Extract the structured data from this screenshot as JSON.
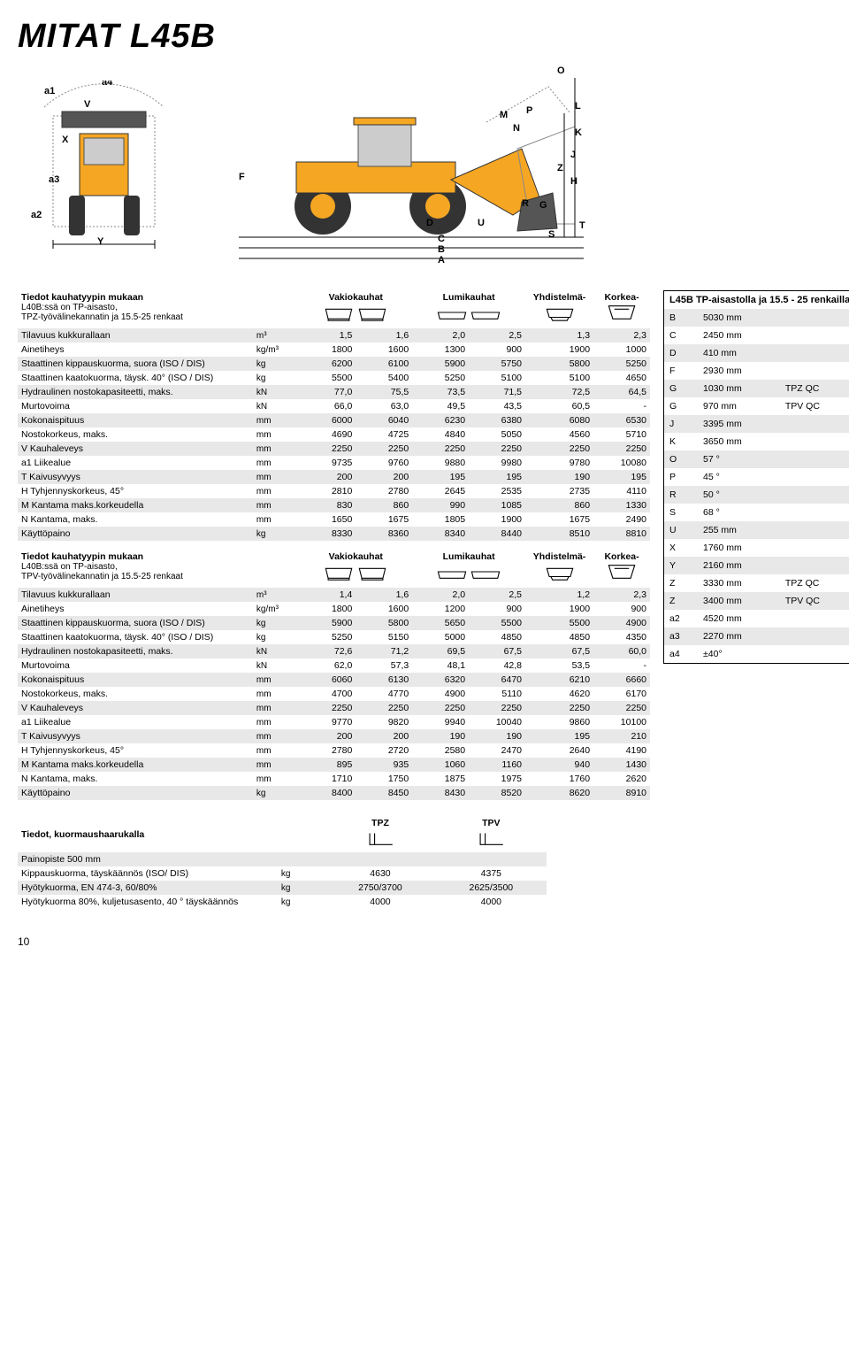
{
  "title": "MITAT L45B",
  "diagram_left": {
    "labels": [
      "a1",
      "a4",
      "V",
      "X",
      "a3",
      "a2",
      "Y"
    ],
    "positions": [
      [
        30,
        15
      ],
      [
        95,
        5
      ],
      [
        75,
        30
      ],
      [
        50,
        70
      ],
      [
        35,
        115
      ],
      [
        15,
        155
      ],
      [
        90,
        185
      ]
    ]
  },
  "diagram_right": {
    "labels": [
      "O",
      "M",
      "P",
      "L",
      "N",
      "K",
      "J",
      "Z",
      "H",
      "F",
      "D",
      "U",
      "R",
      "G",
      "T",
      "S",
      "C",
      "B",
      "A"
    ],
    "positions": [
      [
        380,
        10
      ],
      [
        315,
        60
      ],
      [
        345,
        55
      ],
      [
        400,
        50
      ],
      [
        330,
        75
      ],
      [
        400,
        80
      ],
      [
        395,
        105
      ],
      [
        380,
        120
      ],
      [
        395,
        135
      ],
      [
        20,
        130
      ],
      [
        232,
        182
      ],
      [
        290,
        182
      ],
      [
        340,
        160
      ],
      [
        360,
        162
      ],
      [
        405,
        185
      ],
      [
        370,
        195
      ],
      [
        245,
        200
      ],
      [
        245,
        212
      ],
      [
        245,
        224
      ]
    ]
  },
  "table1": {
    "header_title": "Tiedot kauhatyypin mukaan",
    "header_sub": "L40B:ssä on TP-aisasto,\nTPZ-työvälinekannatin ja 15.5-25 renkaat",
    "col_headers": [
      "Vakiokauhat",
      "Lumikauhat",
      "Yhdistelmä-",
      "Korkea-"
    ],
    "rows": [
      {
        "label": "Tilavuus kukkurallaan",
        "unit": "m³",
        "vals": [
          "1,5",
          "1,6",
          "2,0",
          "2,5",
          "1,3",
          "2,3"
        ]
      },
      {
        "label": "Ainetiheys",
        "unit": "kg/m³",
        "vals": [
          "1800",
          "1600",
          "1300",
          "900",
          "1900",
          "1000"
        ]
      },
      {
        "label": "Staattinen kippauskuorma, suora (ISO / DIS)",
        "unit": "kg",
        "vals": [
          "6200",
          "6100",
          "5900",
          "5750",
          "5800",
          "5250"
        ]
      },
      {
        "label": "Staattinen kaatokuorma, täysk. 40° (ISO / DIS)",
        "unit": "kg",
        "vals": [
          "5500",
          "5400",
          "5250",
          "5100",
          "5100",
          "4650"
        ]
      },
      {
        "label": "Hydraulinen nostokapasiteetti, maks.",
        "unit": "kN",
        "vals": [
          "77,0",
          "75,5",
          "73,5",
          "71,5",
          "72,5",
          "64,5"
        ]
      },
      {
        "label": "Murtovoima",
        "unit": "kN",
        "vals": [
          "66,0",
          "63,0",
          "49,5",
          "43,5",
          "60,5",
          "-"
        ]
      },
      {
        "label": "Kokonaispituus",
        "unit": "mm",
        "vals": [
          "6000",
          "6040",
          "6230",
          "6380",
          "6080",
          "6530"
        ]
      },
      {
        "label": "Nostokorkeus, maks.",
        "unit": "mm",
        "vals": [
          "4690",
          "4725",
          "4840",
          "5050",
          "4560",
          "5710"
        ]
      },
      {
        "label": "V Kauhaleveys",
        "unit": "mm",
        "vals": [
          "2250",
          "2250",
          "2250",
          "2250",
          "2250",
          "2250"
        ]
      },
      {
        "label": "a1 Liikealue",
        "unit": "mm",
        "vals": [
          "9735",
          "9760",
          "9880",
          "9980",
          "9780",
          "10080"
        ]
      },
      {
        "label": "T Kaivusyvyys",
        "unit": "mm",
        "vals": [
          "200",
          "200",
          "195",
          "195",
          "190",
          "195"
        ]
      },
      {
        "label": "H Tyhjennyskorkeus, 45°",
        "unit": "mm",
        "vals": [
          "2810",
          "2780",
          "2645",
          "2535",
          "2735",
          "4110"
        ]
      },
      {
        "label": "M Kantama maks.korkeudella",
        "unit": "mm",
        "vals": [
          "830",
          "860",
          "990",
          "1085",
          "860",
          "1330"
        ]
      },
      {
        "label": "N Kantama, maks.",
        "unit": "mm",
        "vals": [
          "1650",
          "1675",
          "1805",
          "1900",
          "1675",
          "2490"
        ]
      },
      {
        "label": "Käyttöpaino",
        "unit": "kg",
        "vals": [
          "8330",
          "8360",
          "8340",
          "8440",
          "8510",
          "8810"
        ]
      }
    ]
  },
  "table2": {
    "header_title": "Tiedot kauhatyypin mukaan",
    "header_sub": "L40B:ssä on TP-aisasto,\nTPV-työvälinekannatin ja 15.5-25 renkaat",
    "col_headers": [
      "Vakiokauhat",
      "Lumikauhat",
      "Yhdistelmä-",
      "Korkea-"
    ],
    "rows": [
      {
        "label": "Tilavuus kukkurallaan",
        "unit": "m³",
        "vals": [
          "1,4",
          "1,6",
          "2,0",
          "2,5",
          "1,2",
          "2,3"
        ]
      },
      {
        "label": "Ainetiheys",
        "unit": "kg/m³",
        "vals": [
          "1800",
          "1600",
          "1200",
          "900",
          "1900",
          "900"
        ]
      },
      {
        "label": "Staattinen kippauskuorma, suora (ISO / DIS)",
        "unit": "kg",
        "vals": [
          "5900",
          "5800",
          "5650",
          "5500",
          "5500",
          "4900"
        ]
      },
      {
        "label": "Staattinen kaatokuorma, täysk. 40° (ISO / DIS)",
        "unit": "kg",
        "vals": [
          "5250",
          "5150",
          "5000",
          "4850",
          "4850",
          "4350"
        ]
      },
      {
        "label": "Hydraulinen nostokapasiteetti, maks.",
        "unit": "kN",
        "vals": [
          "72,6",
          "71,2",
          "69,5",
          "67,5",
          "67,5",
          "60,0"
        ]
      },
      {
        "label": "Murtovoima",
        "unit": "kN",
        "vals": [
          "62,0",
          "57,3",
          "48,1",
          "42,8",
          "53,5",
          "-"
        ]
      },
      {
        "label": "Kokonaispituus",
        "unit": "mm",
        "vals": [
          "6060",
          "6130",
          "6320",
          "6470",
          "6210",
          "6660"
        ]
      },
      {
        "label": "Nostokorkeus, maks.",
        "unit": "mm",
        "vals": [
          "4700",
          "4770",
          "4900",
          "5110",
          "4620",
          "6170"
        ]
      },
      {
        "label": "V Kauhaleveys",
        "unit": "mm",
        "vals": [
          "2250",
          "2250",
          "2250",
          "2250",
          "2250",
          "2250"
        ]
      },
      {
        "label": "a1 Liikealue",
        "unit": "mm",
        "vals": [
          "9770",
          "9820",
          "9940",
          "10040",
          "9860",
          "10100"
        ]
      },
      {
        "label": "T Kaivusyvyys",
        "unit": "mm",
        "vals": [
          "200",
          "200",
          "190",
          "190",
          "195",
          "210"
        ]
      },
      {
        "label": "H Tyhjennyskorkeus, 45°",
        "unit": "mm",
        "vals": [
          "2780",
          "2720",
          "2580",
          "2470",
          "2640",
          "4190"
        ]
      },
      {
        "label": "M Kantama maks.korkeudella",
        "unit": "mm",
        "vals": [
          "895",
          "935",
          "1060",
          "1160",
          "940",
          "1430"
        ]
      },
      {
        "label": "N Kantama, maks.",
        "unit": "mm",
        "vals": [
          "1710",
          "1750",
          "1875",
          "1975",
          "1760",
          "2620"
        ]
      },
      {
        "label": "Käyttöpaino",
        "unit": "kg",
        "vals": [
          "8400",
          "8450",
          "8430",
          "8520",
          "8620",
          "8910"
        ]
      }
    ]
  },
  "side": {
    "title": "L45B TP-aisastolla ja 15.5 - 25 renkailla",
    "rows": [
      {
        "k": "B",
        "v": "5030 mm"
      },
      {
        "k": "C",
        "v": "2450 mm"
      },
      {
        "k": "D",
        "v": "410 mm"
      },
      {
        "k": "F",
        "v": "2930 mm"
      },
      {
        "k": "G",
        "v": "1030 mm",
        "e": "TPZ QC"
      },
      {
        "k": "G",
        "v": "970 mm",
        "e": "TPV QC"
      },
      {
        "k": "J",
        "v": "3395 mm"
      },
      {
        "k": "K",
        "v": "3650 mm"
      },
      {
        "k": "O",
        "v": "57 °"
      },
      {
        "k": "P",
        "v": "45 °"
      },
      {
        "k": "R",
        "v": "50 °"
      },
      {
        "k": "S",
        "v": "68 °"
      },
      {
        "k": "U",
        "v": "255 mm"
      },
      {
        "k": "X",
        "v": "1760 mm"
      },
      {
        "k": "Y",
        "v": "2160 mm"
      },
      {
        "k": "Z",
        "v": "3330 mm",
        "e": "TPZ QC"
      },
      {
        "k": "Z",
        "v": "3400 mm",
        "e": "TPV QC"
      },
      {
        "k": "a2",
        "v": "4520 mm"
      },
      {
        "k": "a3",
        "v": "2270 mm"
      },
      {
        "k": "a4",
        "v": "±40°"
      }
    ]
  },
  "bottom": {
    "title": "Tiedot, kuormaushaarukalla",
    "col_headers": [
      "TPZ",
      "TPV"
    ],
    "rows": [
      {
        "label": "Painopiste 500 mm",
        "unit": "",
        "vals": [
          "",
          ""
        ]
      },
      {
        "label": "Kippauskuorma, täyskäännös (ISO/ DIS)",
        "unit": "kg",
        "vals": [
          "4630",
          "4375"
        ]
      },
      {
        "label": "Hyötykuorma, EN 474-3, 60/80%",
        "unit": "kg",
        "vals": [
          "2750/3700",
          "2625/3500"
        ]
      },
      {
        "label": "Hyötykuorma 80%, kuljetusasento, 40 ° täyskäännös",
        "unit": "kg",
        "vals": [
          "4000",
          "4000"
        ]
      }
    ]
  },
  "pagenum": "10",
  "colors": {
    "loader_body": "#f5a623",
    "loader_dark": "#333",
    "stripe": "#e8e8e8"
  }
}
